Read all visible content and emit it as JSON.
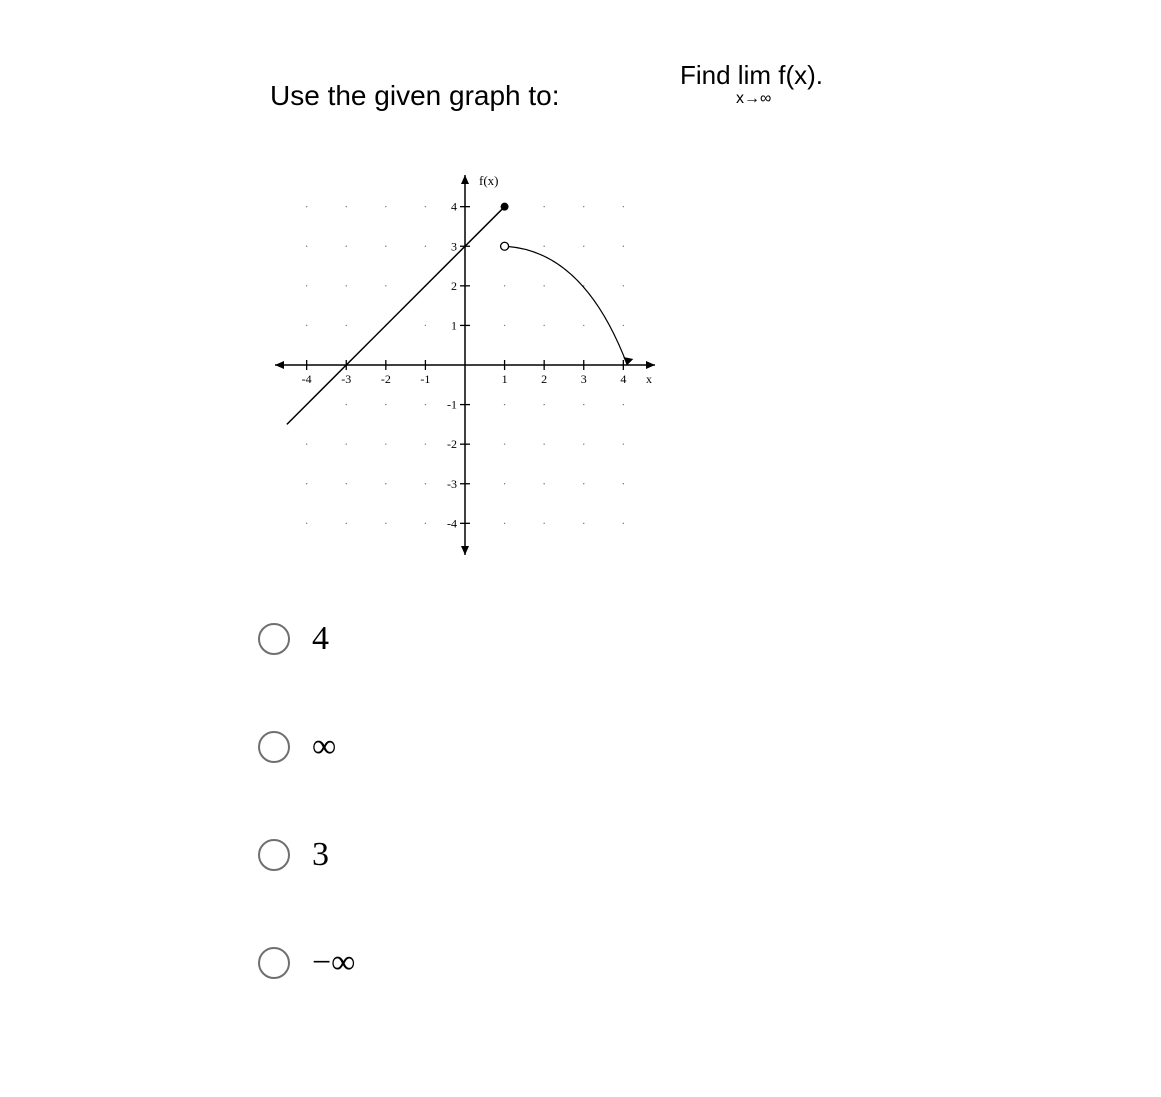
{
  "question": {
    "prompt": "Use the given graph to:",
    "find_line": "Find  lim  f(x).",
    "limit_sub": "x→∞"
  },
  "graph": {
    "xmin": -4.8,
    "xmax": 4.8,
    "ymin": -4.8,
    "ymax": 4.8,
    "x_ticks": [
      -4,
      -3,
      -2,
      -1,
      1,
      2,
      3,
      4
    ],
    "y_ticks": [
      -4,
      -3,
      -2,
      -1,
      1,
      2,
      3,
      4
    ],
    "x_tick_labels": [
      "-4",
      "-3",
      "-2",
      "-1",
      "1",
      "2",
      "3",
      "4"
    ],
    "y_tick_labels": [
      "-4",
      "-3",
      "-2",
      "-1",
      "1",
      "2",
      "3",
      "4"
    ],
    "x_axis_label": "x",
    "y_axis_label": "f(x)",
    "axis_color": "#000000",
    "tick_fontsize": 12,
    "grid_dots": {
      "step": 1,
      "color": "#777777",
      "radius": 0.7
    },
    "line_segment": {
      "from": [
        -4.5,
        -1.5
      ],
      "to": [
        1,
        4
      ],
      "color": "#000000",
      "width": 1.5
    },
    "filled_point": {
      "at": [
        1,
        4
      ],
      "r": 4,
      "fill": "#000000"
    },
    "open_point": {
      "at": [
        1,
        3
      ],
      "r": 4,
      "stroke": "#000000",
      "fill": "#ffffff"
    },
    "curve": {
      "from": [
        1,
        3
      ],
      "ctrl": [
        3.0,
        2.9
      ],
      "to": [
        4.1,
        0
      ],
      "color": "#000000",
      "width": 1.2
    }
  },
  "options": [
    {
      "id": "opt-4",
      "label": "4"
    },
    {
      "id": "opt-inf",
      "label": "∞"
    },
    {
      "id": "opt-3",
      "label": "3"
    },
    {
      "id": "opt-neg-inf",
      "label": "−∞"
    }
  ]
}
